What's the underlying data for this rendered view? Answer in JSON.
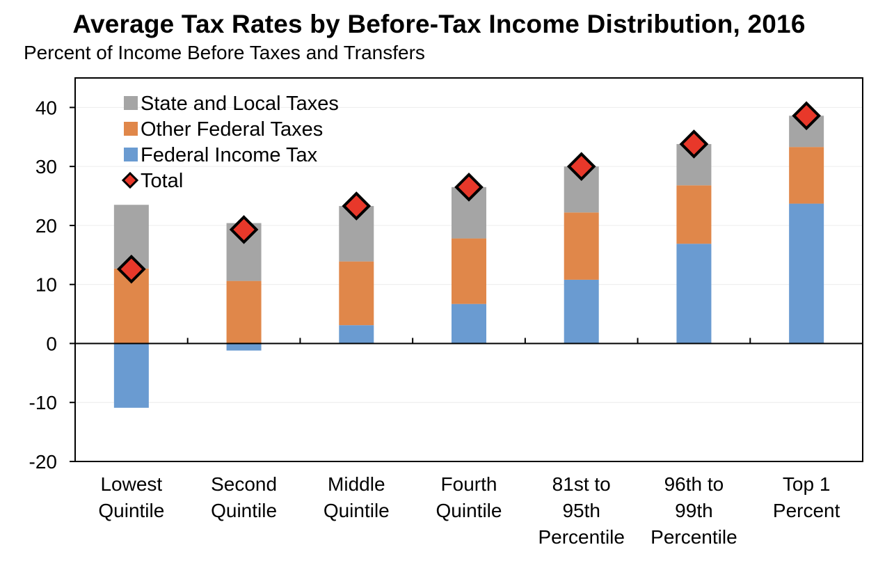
{
  "chart_data": {
    "type": "bar",
    "stacked": true,
    "title": "Average Tax Rates by Before-Tax Income Distribution, 2016",
    "subtitle": "Percent of Income Before Taxes and Transfers",
    "xlabel": "",
    "ylabel": "",
    "ylim": [
      -20,
      45
    ],
    "yticks": [
      -20,
      -10,
      0,
      10,
      20,
      30,
      40
    ],
    "grid": true,
    "legend_position": "top-left",
    "categories": [
      [
        "Lowest",
        "Quintile"
      ],
      [
        "Second",
        "Quintile"
      ],
      [
        "Middle",
        "Quintile"
      ],
      [
        "Fourth",
        "Quintile"
      ],
      [
        "81st to",
        "95th",
        "Percentile"
      ],
      [
        "96th to",
        "99th",
        "Percentile"
      ],
      [
        "Top 1",
        "Percent"
      ]
    ],
    "series": [
      {
        "name": "Federal Income Tax",
        "color": "#6a9bd1",
        "values": [
          -10.9,
          -1.2,
          3.1,
          6.7,
          10.8,
          16.9,
          23.7
        ]
      },
      {
        "name": "Other Federal Taxes",
        "color": "#e0874a",
        "values": [
          12.7,
          10.6,
          10.8,
          11.1,
          11.4,
          9.9,
          9.6
        ]
      },
      {
        "name": "State and Local Taxes",
        "color": "#a5a5a5",
        "values": [
          10.8,
          9.8,
          9.4,
          8.7,
          7.8,
          7.0,
          5.3
        ]
      }
    ],
    "total": {
      "name": "Total",
      "color": "#e8382a",
      "values": [
        12.6,
        19.3,
        23.3,
        26.5,
        30.0,
        33.8,
        38.6
      ]
    },
    "legend_order": [
      "State and Local Taxes",
      "Other Federal Taxes",
      "Federal Income Tax",
      "Total"
    ]
  }
}
